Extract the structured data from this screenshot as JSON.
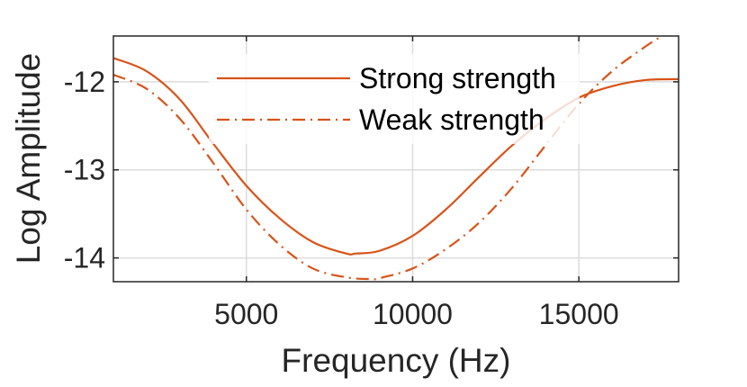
{
  "chart_data": {
    "type": "line",
    "title": "",
    "xlabel": "Frequency (Hz)",
    "ylabel": "Log Amplitude",
    "xlim": [
      1000,
      18000
    ],
    "ylim": [
      -14.27,
      -11.48
    ],
    "xticks": [
      5000,
      10000,
      15000
    ],
    "xtick_labels": [
      "5000",
      "10000",
      "15000"
    ],
    "yticks": [
      -12,
      -13,
      -14
    ],
    "ytick_labels": [
      "-12",
      "-13",
      "-14"
    ],
    "grid": true,
    "legend_position": "top-center",
    "series": [
      {
        "name": "Strong strength",
        "style": "solid",
        "color": "#D95319",
        "x": [
          1000,
          2000,
          3000,
          4000,
          5000,
          6000,
          7000,
          8000,
          8300,
          9000,
          10000,
          11000,
          12000,
          13000,
          14000,
          15000,
          16000,
          17000,
          18000
        ],
        "y": [
          -11.73,
          -11.88,
          -12.2,
          -12.7,
          -13.18,
          -13.55,
          -13.82,
          -13.95,
          -13.95,
          -13.92,
          -13.75,
          -13.45,
          -13.08,
          -12.72,
          -12.42,
          -12.18,
          -12.05,
          -11.98,
          -11.97
        ]
      },
      {
        "name": "Weak strength",
        "style": "dashdot",
        "color": "#D95319",
        "x": [
          1000,
          2000,
          3000,
          4000,
          5000,
          6000,
          7000,
          8000,
          8700,
          9000,
          10000,
          11000,
          12000,
          13000,
          14000,
          15000,
          16000,
          17000,
          17500
        ],
        "y": [
          -11.92,
          -12.08,
          -12.42,
          -12.92,
          -13.45,
          -13.85,
          -14.12,
          -14.22,
          -14.24,
          -14.23,
          -14.12,
          -13.9,
          -13.6,
          -13.2,
          -12.72,
          -12.25,
          -11.88,
          -11.6,
          -11.48
        ]
      }
    ]
  }
}
